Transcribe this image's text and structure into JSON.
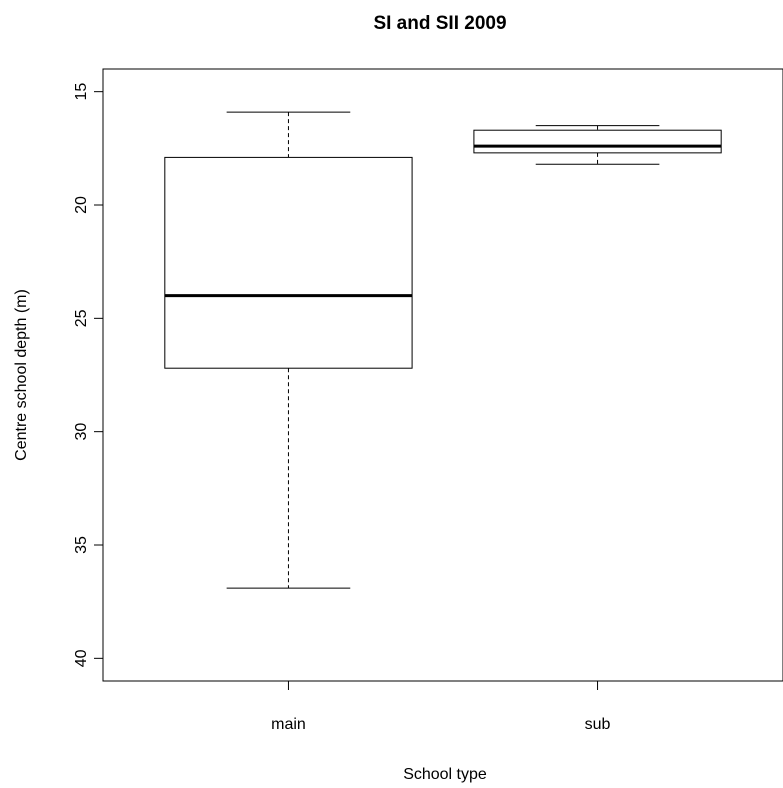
{
  "chart_data": {
    "type": "box",
    "title": "SI and SII 2009",
    "xlabel": "School type",
    "ylabel": "Centre school depth (m)",
    "categories": [
      "main",
      "sub"
    ],
    "y_axis_inverted": true,
    "ylim": [
      41,
      14
    ],
    "yticks": [
      "15",
      "20",
      "25",
      "30",
      "35",
      "40"
    ],
    "grid": false,
    "legend": "none",
    "boxes": [
      {
        "name": "main",
        "whisker_low": 15.9,
        "q1": 17.9,
        "median": 24.0,
        "q3": 27.2,
        "whisker_high": 36.9
      },
      {
        "name": "sub",
        "whisker_low": 16.5,
        "q1": 16.7,
        "median": 17.4,
        "q3": 17.7,
        "whisker_high": 18.2
      }
    ]
  }
}
